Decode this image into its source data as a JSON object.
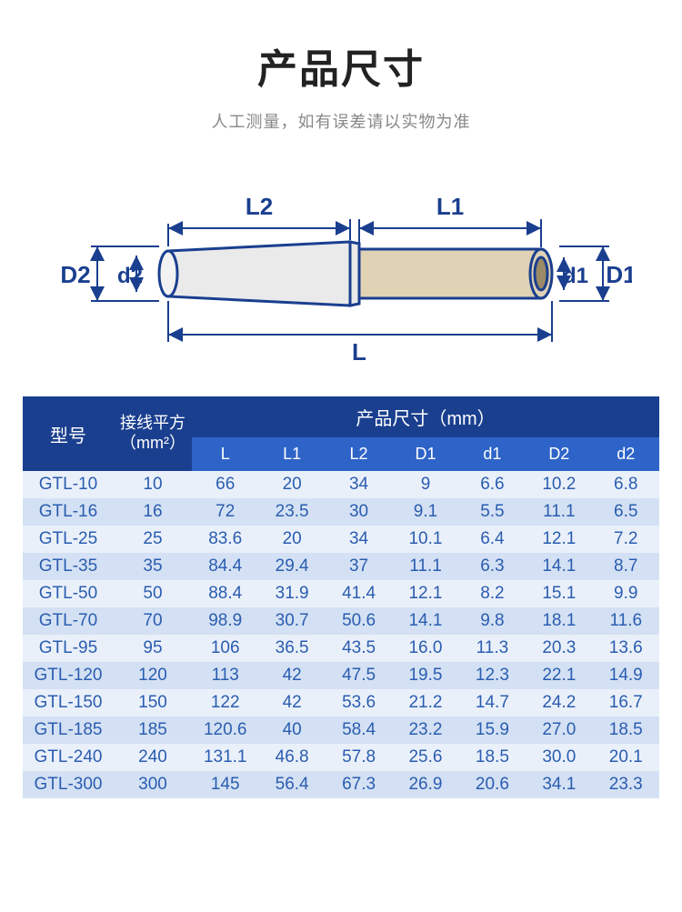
{
  "header": {
    "title": "产品尺寸",
    "subtitle": "人工测量，如有误差请以实物为准"
  },
  "diagram": {
    "labels": {
      "D2": "D2",
      "d2": "d2",
      "L2": "L2",
      "L1": "L1",
      "d1": "d1",
      "D1": "D1",
      "L": "L"
    },
    "stroke": "#1a3f8f",
    "fill_left": "#e8e8e8",
    "fill_right": "#d8c9a8",
    "text_color": "#1a3f8f"
  },
  "table": {
    "header": {
      "model": "型号",
      "wire_line1": "接线平方",
      "wire_line2": "（mm²）",
      "dim_group": "产品尺寸（mm）",
      "cols": [
        "L",
        "L1",
        "L2",
        "D1",
        "d1",
        "D2",
        "d2"
      ]
    },
    "header_colors": {
      "top": "#1a3f8f",
      "sub": "#2e64c8",
      "text": "#ffffff"
    },
    "row_colors": {
      "odd": "#eaf0fa",
      "even": "#d4e1f4",
      "text": "#2a5db0"
    },
    "rows": [
      {
        "model": "GTL-10",
        "wire": "10",
        "L": "66",
        "L1": "20",
        "L2": "34",
        "D1": "9",
        "d1": "6.6",
        "D2": "10.2",
        "d2": "6.8"
      },
      {
        "model": "GTL-16",
        "wire": "16",
        "L": "72",
        "L1": "23.5",
        "L2": "30",
        "D1": "9.1",
        "d1": "5.5",
        "D2": "11.1",
        "d2": "6.5"
      },
      {
        "model": "GTL-25",
        "wire": "25",
        "L": "83.6",
        "L1": "20",
        "L2": "34",
        "D1": "10.1",
        "d1": "6.4",
        "D2": "12.1",
        "d2": "7.2"
      },
      {
        "model": "GTL-35",
        "wire": "35",
        "L": "84.4",
        "L1": "29.4",
        "L2": "37",
        "D1": "11.1",
        "d1": "6.3",
        "D2": "14.1",
        "d2": "8.7"
      },
      {
        "model": "GTL-50",
        "wire": "50",
        "L": "88.4",
        "L1": "31.9",
        "L2": "41.4",
        "D1": "12.1",
        "d1": "8.2",
        "D2": "15.1",
        "d2": "9.9"
      },
      {
        "model": "GTL-70",
        "wire": "70",
        "L": "98.9",
        "L1": "30.7",
        "L2": "50.6",
        "D1": "14.1",
        "d1": "9.8",
        "D2": "18.1",
        "d2": "11.6"
      },
      {
        "model": "GTL-95",
        "wire": "95",
        "L": "106",
        "L1": "36.5",
        "L2": "43.5",
        "D1": "16.0",
        "d1": "11.3",
        "D2": "20.3",
        "d2": "13.6"
      },
      {
        "model": "GTL-120",
        "wire": "120",
        "L": "113",
        "L1": "42",
        "L2": "47.5",
        "D1": "19.5",
        "d1": "12.3",
        "D2": "22.1",
        "d2": "14.9"
      },
      {
        "model": "GTL-150",
        "wire": "150",
        "L": "122",
        "L1": "42",
        "L2": "53.6",
        "D1": "21.2",
        "d1": "14.7",
        "D2": "24.2",
        "d2": "16.7"
      },
      {
        "model": "GTL-185",
        "wire": "185",
        "L": "120.6",
        "L1": "40",
        "L2": "58.4",
        "D1": "23.2",
        "d1": "15.9",
        "D2": "27.0",
        "d2": "18.5"
      },
      {
        "model": "GTL-240",
        "wire": "240",
        "L": "131.1",
        "L1": "46.8",
        "L2": "57.8",
        "D1": "25.6",
        "d1": "18.5",
        "D2": "30.0",
        "d2": "20.1"
      },
      {
        "model": "GTL-300",
        "wire": "300",
        "L": "145",
        "L1": "56.4",
        "L2": "67.3",
        "D1": "26.9",
        "d1": "20.6",
        "D2": "34.1",
        "d2": "23.3"
      }
    ]
  }
}
